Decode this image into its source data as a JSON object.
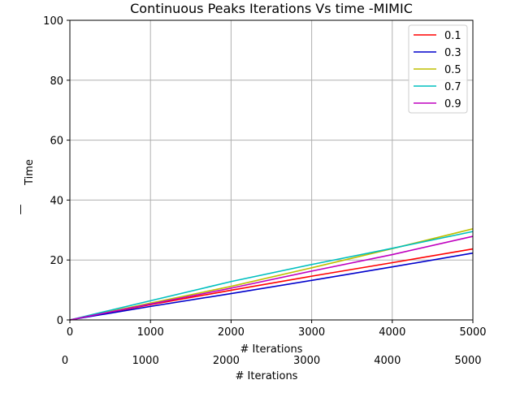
{
  "chart_data": {
    "type": "line",
    "title": "Continuous Peaks Iterations Vs time -MIMIC",
    "xlabel": "# Iterations",
    "ylabel": "Time",
    "ylabel_fragment": "—",
    "xlim": [
      0,
      5000
    ],
    "ylim": [
      0,
      100
    ],
    "xticks": [
      0,
      1000,
      2000,
      3000,
      4000,
      5000
    ],
    "yticks": [
      0,
      20,
      40,
      60,
      80,
      100
    ],
    "grid": true,
    "legend_position": "top-right",
    "ghost_axis": {
      "ticks": [
        0,
        1000,
        2000,
        3000,
        4000,
        5000
      ],
      "xlabel": "# Iterations"
    },
    "series": [
      {
        "name": "0.1",
        "color": "#ff0000",
        "x": [
          0,
          1000,
          2000,
          3000,
          4000,
          5000
        ],
        "y": [
          0,
          5.1,
          9.9,
          14.6,
          19.1,
          23.7
        ]
      },
      {
        "name": "0.3",
        "color": "#0000cc",
        "x": [
          0,
          1000,
          2000,
          3000,
          4000,
          5000
        ],
        "y": [
          0,
          4.5,
          8.8,
          13.2,
          17.7,
          22.3
        ]
      },
      {
        "name": "0.5",
        "color": "#bfbf00",
        "x": [
          0,
          1000,
          2000,
          3000,
          4000,
          5000
        ],
        "y": [
          0,
          5.6,
          11.2,
          17.4,
          23.8,
          30.4
        ]
      },
      {
        "name": "0.7",
        "color": "#00bfbf",
        "x": [
          0,
          1000,
          2000,
          3000,
          4000,
          5000
        ],
        "y": [
          0,
          6.4,
          12.8,
          18.5,
          23.9,
          29.5
        ]
      },
      {
        "name": "0.9",
        "color": "#bf00bf",
        "x": [
          0,
          1000,
          2000,
          3000,
          4000,
          5000
        ],
        "y": [
          0,
          5.3,
          10.6,
          16.3,
          21.8,
          27.9
        ]
      }
    ]
  }
}
